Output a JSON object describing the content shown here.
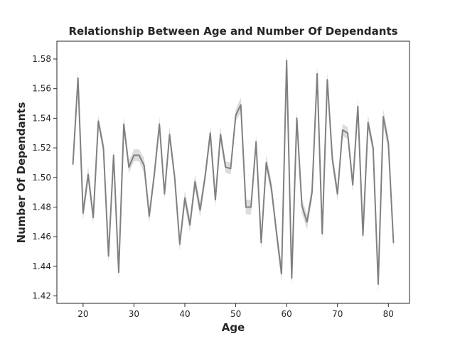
{
  "chart_data": {
    "type": "line",
    "title": "Relationship Between Age and Number Of Dependants",
    "xlabel": "Age",
    "ylabel": "Number Of Dependants",
    "xlim": [
      14.85,
      84.15
    ],
    "ylim": [
      1.415,
      1.592
    ],
    "xticks": [
      20,
      30,
      40,
      50,
      60,
      70,
      80
    ],
    "yticks": [
      1.42,
      1.44,
      1.46,
      1.48,
      1.5,
      1.52,
      1.54,
      1.56,
      1.58
    ],
    "grid": false,
    "legend": "none",
    "series": [
      {
        "line_color": "#808080",
        "band_color": "#d8d8d8",
        "x": [
          18,
          19,
          20,
          21,
          22,
          23,
          24,
          25,
          26,
          27,
          28,
          29,
          30,
          31,
          32,
          33,
          34,
          35,
          36,
          37,
          38,
          39,
          40,
          41,
          42,
          43,
          44,
          45,
          46,
          47,
          48,
          49,
          50,
          51,
          52,
          53,
          54,
          55,
          56,
          57,
          58,
          59,
          60,
          61,
          62,
          63,
          64,
          65,
          66,
          67,
          68,
          69,
          70,
          71,
          72,
          73,
          74,
          75,
          76,
          77,
          78,
          79,
          80,
          81
        ],
        "y": [
          1.509,
          1.567,
          1.476,
          1.502,
          1.473,
          1.538,
          1.52,
          1.447,
          1.515,
          1.436,
          1.536,
          1.507,
          1.515,
          1.515,
          1.508,
          1.474,
          1.502,
          1.536,
          1.489,
          1.529,
          1.5,
          1.455,
          1.486,
          1.468,
          1.497,
          1.478,
          1.501,
          1.53,
          1.485,
          1.529,
          1.507,
          1.506,
          1.542,
          1.549,
          1.48,
          1.48,
          1.524,
          1.456,
          1.51,
          1.493,
          1.463,
          1.435,
          1.579,
          1.432,
          1.54,
          1.481,
          1.47,
          1.49,
          1.57,
          1.462,
          1.566,
          1.512,
          1.489,
          1.532,
          1.53,
          1.495,
          1.548,
          1.461,
          1.537,
          1.52,
          1.428,
          1.541,
          1.523,
          1.456
        ],
        "ci_half_width": [
          0.004,
          0.005,
          0.005,
          0.005,
          0.005,
          0.004,
          0.004,
          0.005,
          0.004,
          0.005,
          0.005,
          0.004,
          0.004,
          0.004,
          0.005,
          0.005,
          0.004,
          0.005,
          0.004,
          0.005,
          0.004,
          0.005,
          0.005,
          0.005,
          0.005,
          0.005,
          0.004,
          0.005,
          0.005,
          0.005,
          0.004,
          0.004,
          0.004,
          0.005,
          0.005,
          0.005,
          0.005,
          0.005,
          0.005,
          0.005,
          0.005,
          0.006,
          0.007,
          0.006,
          0.005,
          0.005,
          0.005,
          0.005,
          0.005,
          0.005,
          0.005,
          0.005,
          0.005,
          0.004,
          0.004,
          0.005,
          0.005,
          0.005,
          0.005,
          0.004,
          0.006,
          0.005,
          0.005,
          0.005
        ]
      }
    ]
  }
}
